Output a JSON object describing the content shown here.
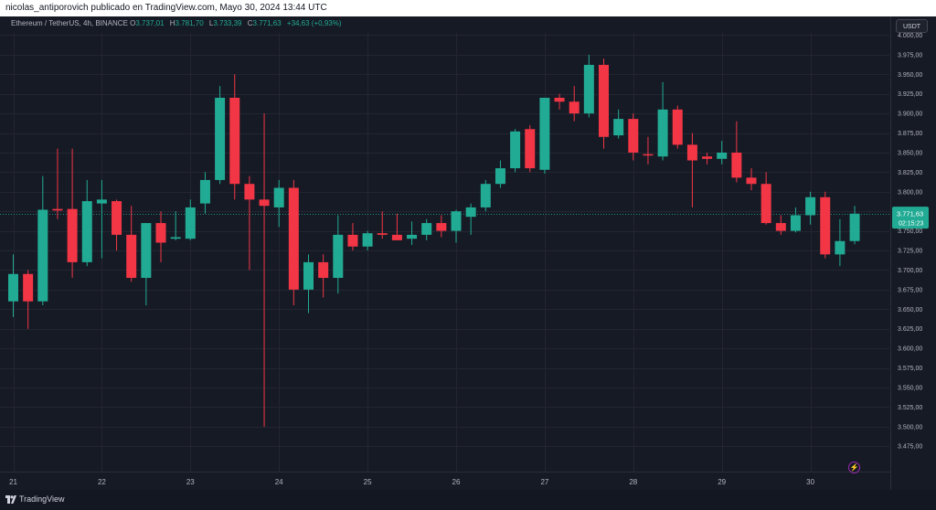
{
  "attribution": "nicolas_antiporovich publicado en TradingView.com, Mayo 30, 2024 13:44 UTC",
  "legend": {
    "symbol": "Ethereum / TetherUS, 4h, BINANCE",
    "o_label": "O",
    "o": "3.737,01",
    "h_label": "H",
    "h": "3.781,70",
    "l_label": "L",
    "l": "3.733,39",
    "c_label": "C",
    "c": "3.771,63",
    "change": "+34,63 (+0,93%)"
  },
  "currency_button": "USDT",
  "price_tag": {
    "price": "3.771,63",
    "countdown": "02:15:23"
  },
  "footer_brand": "TradingView",
  "icons": {
    "logo": "tradingview-logo-icon",
    "bolt": "lightning-icon"
  },
  "colors": {
    "up": "#22ab94",
    "down": "#f23645",
    "background": "#161a25",
    "grid": "#232632"
  },
  "chart_data": {
    "type": "candlestick",
    "symbol": "ETH/USDT",
    "timeframe": "4h",
    "ylim": [
      3475,
      4000
    ],
    "y_tick_values": [
      3475,
      3500,
      3525,
      3550,
      3575,
      3600,
      3625,
      3650,
      3675,
      3700,
      3725,
      3750,
      3775,
      3800,
      3825,
      3850,
      3875,
      3900,
      3925,
      3950,
      3975,
      4000
    ],
    "y_tick_labels": [
      "3.475,00",
      "3.500,00",
      "3.525,00",
      "3.550,00",
      "3.575,00",
      "3.600,00",
      "3.625,00",
      "3.650,00",
      "3.675,00",
      "3.700,00",
      "3.725,00",
      "3.750,00",
      "3.775,00",
      "3.800,00",
      "3.825,00",
      "3.850,00",
      "3.875,00",
      "3.900,00",
      "3.925,00",
      "3.950,00",
      "3.975,00",
      "4.000,00"
    ],
    "x_tick_labels": [
      "21",
      "22",
      "23",
      "24",
      "25",
      "26",
      "27",
      "28",
      "29",
      "30"
    ],
    "x_tick_index": [
      0,
      6,
      12,
      18,
      24,
      30,
      36,
      42,
      48,
      54
    ],
    "current_price": 3771.63,
    "candles": [
      {
        "o": 3660,
        "h": 3720,
        "l": 3640,
        "c": 3695
      },
      {
        "o": 3695,
        "h": 3700,
        "l": 3625,
        "c": 3660
      },
      {
        "o": 3660,
        "h": 3820,
        "l": 3655,
        "c": 3777
      },
      {
        "o": 3778,
        "h": 3855,
        "l": 3765,
        "c": 3776
      },
      {
        "o": 3778,
        "h": 3855,
        "l": 3690,
        "c": 3710
      },
      {
        "o": 3710,
        "h": 3815,
        "l": 3705,
        "c": 3788
      },
      {
        "o": 3785,
        "h": 3815,
        "l": 3715,
        "c": 3790
      },
      {
        "o": 3788,
        "h": 3790,
        "l": 3725,
        "c": 3745
      },
      {
        "o": 3745,
        "h": 3782,
        "l": 3685,
        "c": 3690
      },
      {
        "o": 3690,
        "h": 3760,
        "l": 3655,
        "c": 3760
      },
      {
        "o": 3760,
        "h": 3775,
        "l": 3710,
        "c": 3735
      },
      {
        "o": 3740,
        "h": 3775,
        "l": 3738,
        "c": 3742
      },
      {
        "o": 3740,
        "h": 3790,
        "l": 3738,
        "c": 3780
      },
      {
        "o": 3785,
        "h": 3825,
        "l": 3772,
        "c": 3815
      },
      {
        "o": 3815,
        "h": 3935,
        "l": 3810,
        "c": 3920
      },
      {
        "o": 3920,
        "h": 3950,
        "l": 3790,
        "c": 3810
      },
      {
        "o": 3810,
        "h": 3820,
        "l": 3700,
        "c": 3790
      },
      {
        "o": 3790,
        "h": 3900,
        "l": 3500,
        "c": 3782
      },
      {
        "o": 3780,
        "h": 3815,
        "l": 3755,
        "c": 3805
      },
      {
        "o": 3805,
        "h": 3815,
        "l": 3655,
        "c": 3675
      },
      {
        "o": 3675,
        "h": 3720,
        "l": 3645,
        "c": 3710
      },
      {
        "o": 3710,
        "h": 3720,
        "l": 3665,
        "c": 3690
      },
      {
        "o": 3690,
        "h": 3770,
        "l": 3670,
        "c": 3745
      },
      {
        "o": 3745,
        "h": 3760,
        "l": 3725,
        "c": 3730
      },
      {
        "o": 3730,
        "h": 3750,
        "l": 3725,
        "c": 3747
      },
      {
        "o": 3747,
        "h": 3775,
        "l": 3740,
        "c": 3745
      },
      {
        "o": 3745,
        "h": 3772,
        "l": 3740,
        "c": 3738
      },
      {
        "o": 3740,
        "h": 3762,
        "l": 3732,
        "c": 3745
      },
      {
        "o": 3745,
        "h": 3765,
        "l": 3738,
        "c": 3760
      },
      {
        "o": 3760,
        "h": 3770,
        "l": 3742,
        "c": 3750
      },
      {
        "o": 3750,
        "h": 3777,
        "l": 3735,
        "c": 3775
      },
      {
        "o": 3768,
        "h": 3785,
        "l": 3745,
        "c": 3780
      },
      {
        "o": 3780,
        "h": 3815,
        "l": 3775,
        "c": 3810
      },
      {
        "o": 3810,
        "h": 3840,
        "l": 3805,
        "c": 3830
      },
      {
        "o": 3830,
        "h": 3880,
        "l": 3825,
        "c": 3877
      },
      {
        "o": 3880,
        "h": 3885,
        "l": 3825,
        "c": 3830
      },
      {
        "o": 3828,
        "h": 3920,
        "l": 3823,
        "c": 3920
      },
      {
        "o": 3920,
        "h": 3925,
        "l": 3905,
        "c": 3915
      },
      {
        "o": 3915,
        "h": 3935,
        "l": 3890,
        "c": 3900
      },
      {
        "o": 3900,
        "h": 3975,
        "l": 3895,
        "c": 3962
      },
      {
        "o": 3962,
        "h": 3970,
        "l": 3855,
        "c": 3870
      },
      {
        "o": 3872,
        "h": 3905,
        "l": 3868,
        "c": 3893
      },
      {
        "o": 3893,
        "h": 3900,
        "l": 3840,
        "c": 3850
      },
      {
        "o": 3848,
        "h": 3870,
        "l": 3835,
        "c": 3847
      },
      {
        "o": 3845,
        "h": 3940,
        "l": 3840,
        "c": 3905
      },
      {
        "o": 3905,
        "h": 3910,
        "l": 3855,
        "c": 3860
      },
      {
        "o": 3860,
        "h": 3875,
        "l": 3780,
        "c": 3840
      },
      {
        "o": 3845,
        "h": 3850,
        "l": 3835,
        "c": 3842
      },
      {
        "o": 3842,
        "h": 3865,
        "l": 3835,
        "c": 3850
      },
      {
        "o": 3850,
        "h": 3890,
        "l": 3812,
        "c": 3818
      },
      {
        "o": 3818,
        "h": 3830,
        "l": 3802,
        "c": 3810
      },
      {
        "o": 3810,
        "h": 3825,
        "l": 3758,
        "c": 3760
      },
      {
        "o": 3760,
        "h": 3770,
        "l": 3745,
        "c": 3750
      },
      {
        "o": 3750,
        "h": 3780,
        "l": 3748,
        "c": 3770
      },
      {
        "o": 3770,
        "h": 3800,
        "l": 3758,
        "c": 3793
      },
      {
        "o": 3793,
        "h": 3800,
        "l": 3715,
        "c": 3720
      },
      {
        "o": 3720,
        "h": 3765,
        "l": 3705,
        "c": 3737
      },
      {
        "o": 3737,
        "h": 3782,
        "l": 3733,
        "c": 3772
      }
    ]
  }
}
